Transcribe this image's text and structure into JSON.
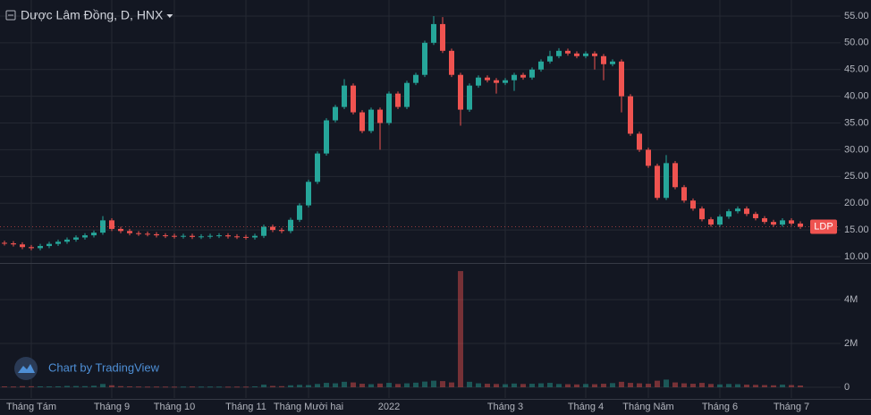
{
  "chart_data": {
    "type": "candlestick",
    "title": "Dược Lâm Đồng, D, HNX",
    "watermark": "Chart by TradingView",
    "categories": [
      null,
      null,
      null,
      "Tháng Tám",
      null,
      null,
      null,
      null,
      null,
      null,
      null,
      null,
      "Tháng 9",
      null,
      null,
      null,
      null,
      null,
      null,
      "Tháng 10",
      null,
      null,
      null,
      null,
      null,
      null,
      null,
      "Tháng 11",
      null,
      null,
      null,
      null,
      null,
      null,
      "Tháng Mười hai",
      null,
      null,
      null,
      null,
      null,
      null,
      null,
      null,
      "2022",
      null,
      null,
      null,
      null,
      null,
      null,
      null,
      null,
      null,
      null,
      null,
      null,
      "Tháng 3",
      null,
      null,
      null,
      null,
      null,
      null,
      null,
      null,
      "Tháng 4",
      null,
      null,
      null,
      null,
      null,
      null,
      "Tháng Năm",
      null,
      null,
      null,
      null,
      null,
      null,
      null,
      "Tháng 6",
      null,
      null,
      null,
      null,
      null,
      null,
      null,
      "Tháng 7",
      null
    ],
    "series": [
      {
        "name": "LDP",
        "up_color": "#26a69a",
        "down_color": "#ef5350",
        "open": [
          12.6,
          12.5,
          12.3,
          11.8,
          11.6,
          12.0,
          12.4,
          12.8,
          13.2,
          13.6,
          14.0,
          14.5,
          16.8,
          15.2,
          14.8,
          14.4,
          14.3,
          14.2,
          14.0,
          13.9,
          13.8,
          13.9,
          13.7,
          13.8,
          13.9,
          14.0,
          13.8,
          13.7,
          13.6,
          13.9,
          15.6,
          15.0,
          14.8,
          16.9,
          19.6,
          24.0,
          29.3,
          35.5,
          38.0,
          42.0,
          37.0,
          33.5,
          37.5,
          35.0,
          40.5,
          38.0,
          42.5,
          44.0,
          50.0,
          53.5,
          48.5,
          44.0,
          37.5,
          42.0,
          43.5,
          43.0,
          42.5,
          43.0,
          44.0,
          43.5,
          45.0,
          46.5,
          47.5,
          48.5,
          48.0,
          47.5,
          48.0,
          47.5,
          46.0,
          46.5,
          40.0,
          33.0,
          30.0,
          27.0,
          21.0,
          27.5,
          23.0,
          20.5,
          19.0,
          17.0,
          16.0,
          17.5,
          18.5,
          19.0,
          18.0,
          17.2,
          16.5,
          16.0,
          16.8,
          16.2
        ],
        "high": [
          13.0,
          12.9,
          12.7,
          12.2,
          12.4,
          12.8,
          13.2,
          13.6,
          14.0,
          14.4,
          14.9,
          17.6,
          17.2,
          15.6,
          15.2,
          14.8,
          14.7,
          14.6,
          14.4,
          14.3,
          14.3,
          14.3,
          14.2,
          14.3,
          14.4,
          14.4,
          14.2,
          14.1,
          14.3,
          16.0,
          16.0,
          15.4,
          17.3,
          20.0,
          24.4,
          29.7,
          35.9,
          38.4,
          43.2,
          42.4,
          37.4,
          37.9,
          37.9,
          40.9,
          40.9,
          42.9,
          44.4,
          50.4,
          55.0,
          54.8,
          48.9,
          44.4,
          42.4,
          43.9,
          43.9,
          43.4,
          43.4,
          44.4,
          44.4,
          45.4,
          46.9,
          48.5,
          49.0,
          48.9,
          48.4,
          48.4,
          48.4,
          47.9,
          46.9,
          46.9,
          40.4,
          33.4,
          30.4,
          27.4,
          29.0,
          27.9,
          23.4,
          20.9,
          19.4,
          17.4,
          17.9,
          18.9,
          19.4,
          19.4,
          18.4,
          17.6,
          16.9,
          17.2,
          17.2,
          16.6
        ],
        "low": [
          12.1,
          11.9,
          11.4,
          11.2,
          11.2,
          11.6,
          12.0,
          12.4,
          12.8,
          13.2,
          13.6,
          14.1,
          14.8,
          14.4,
          14.0,
          13.9,
          13.8,
          13.6,
          13.5,
          13.4,
          13.4,
          13.3,
          13.3,
          13.4,
          13.5,
          13.4,
          13.3,
          13.2,
          13.2,
          13.5,
          14.6,
          14.4,
          14.4,
          16.5,
          19.2,
          23.6,
          28.9,
          35.1,
          37.6,
          36.6,
          33.1,
          33.1,
          30.0,
          34.6,
          37.6,
          37.6,
          42.1,
          43.6,
          49.6,
          48.1,
          43.6,
          34.5,
          37.1,
          41.6,
          42.6,
          40.5,
          42.1,
          41.0,
          43.1,
          43.1,
          44.6,
          46.1,
          47.1,
          47.6,
          47.1,
          47.1,
          45.0,
          43.0,
          45.6,
          37.0,
          32.6,
          29.6,
          26.6,
          20.6,
          20.6,
          22.6,
          20.1,
          18.6,
          16.6,
          15.6,
          15.6,
          17.1,
          18.1,
          17.6,
          16.8,
          16.1,
          15.6,
          15.6,
          15.8,
          15.2
        ],
        "close": [
          12.5,
          12.3,
          11.8,
          11.6,
          12.0,
          12.4,
          12.8,
          13.2,
          13.6,
          14.0,
          14.5,
          16.8,
          15.2,
          14.8,
          14.4,
          14.3,
          14.2,
          14.0,
          13.9,
          13.8,
          13.9,
          13.7,
          13.8,
          13.9,
          14.0,
          13.8,
          13.7,
          13.6,
          13.9,
          15.6,
          15.0,
          14.8,
          16.9,
          19.6,
          24.0,
          29.3,
          35.5,
          38.0,
          42.0,
          37.0,
          33.5,
          37.5,
          35.0,
          40.5,
          38.0,
          42.5,
          44.0,
          50.0,
          53.5,
          48.5,
          44.0,
          37.5,
          42.0,
          43.5,
          43.0,
          42.5,
          43.0,
          44.0,
          43.5,
          45.0,
          46.5,
          47.5,
          48.5,
          48.0,
          47.5,
          48.0,
          47.5,
          46.0,
          46.5,
          40.0,
          33.0,
          30.0,
          27.0,
          21.0,
          27.5,
          23.0,
          20.5,
          19.0,
          17.0,
          16.0,
          17.5,
          18.5,
          19.0,
          18.0,
          17.2,
          16.5,
          16.0,
          16.8,
          16.2,
          15.6
        ]
      }
    ],
    "ylim": [
      9,
      58
    ],
    "yticks": [
      {
        "value": 10,
        "label": "10.00"
      },
      {
        "value": 15,
        "label": "15.00"
      },
      {
        "value": 20,
        "label": "20.00"
      },
      {
        "value": 25,
        "label": "25.00"
      },
      {
        "value": 30,
        "label": "30.00"
      },
      {
        "value": 35,
        "label": "35.00"
      },
      {
        "value": 40,
        "label": "40.00"
      },
      {
        "value": 45,
        "label": "45.00"
      },
      {
        "value": 50,
        "label": "50.00"
      },
      {
        "value": 55,
        "label": "55.00"
      }
    ],
    "grid": true,
    "volume": {
      "values": [
        40000,
        35000,
        50000,
        45000,
        40000,
        38000,
        42000,
        60000,
        55000,
        50000,
        70000,
        150000,
        90000,
        50000,
        40000,
        35000,
        30000,
        32000,
        30000,
        28000,
        30000,
        35000,
        30000,
        32000,
        30000,
        28000,
        30000,
        30000,
        40000,
        120000,
        60000,
        50000,
        90000,
        110000,
        100000,
        150000,
        200000,
        180000,
        250000,
        220000,
        160000,
        140000,
        170000,
        200000,
        150000,
        180000,
        210000,
        260000,
        300000,
        280000,
        220000,
        5300000,
        250000,
        180000,
        160000,
        150000,
        140000,
        170000,
        150000,
        160000,
        180000,
        200000,
        150000,
        140000,
        130000,
        150000,
        140000,
        160000,
        190000,
        250000,
        200000,
        180000,
        160000,
        300000,
        350000,
        220000,
        180000,
        160000,
        200000,
        150000,
        130000,
        150000,
        140000,
        120000,
        110000,
        100000,
        90000,
        120000,
        100000,
        80000
      ],
      "ylim": [
        -490000,
        5630000
      ],
      "yticks": [
        0,
        {
          "value": 2000000,
          "label": "2M"
        },
        {
          "value": 4000000,
          "label": "4M"
        }
      ]
    }
  }
}
